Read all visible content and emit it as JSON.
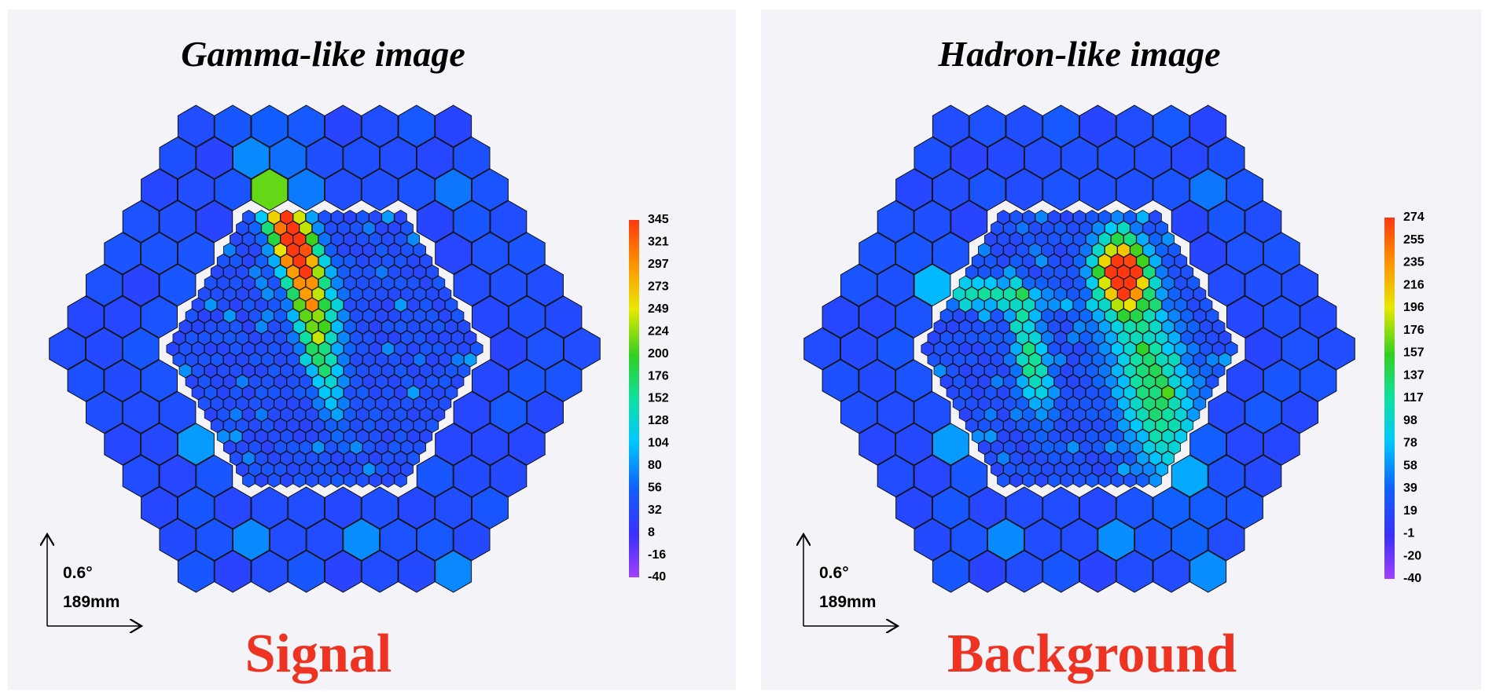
{
  "panels": [
    {
      "title": "Gamma-like image",
      "colorbar_labels": [
        345,
        321,
        297,
        273,
        249,
        224,
        200,
        176,
        152,
        128,
        104,
        80,
        56,
        32,
        8,
        -16,
        -40
      ],
      "scale_angle": "0.6°",
      "scale_length": "189mm",
      "caption": "Signal"
    },
    {
      "title": "Hadron-like image",
      "colorbar_labels": [
        274,
        255,
        235,
        216,
        196,
        176,
        157,
        137,
        117,
        98,
        78,
        58,
        39,
        19,
        -1,
        -20,
        -40
      ],
      "scale_angle": "0.6°",
      "scale_length": "189mm",
      "caption": "Background"
    }
  ]
}
